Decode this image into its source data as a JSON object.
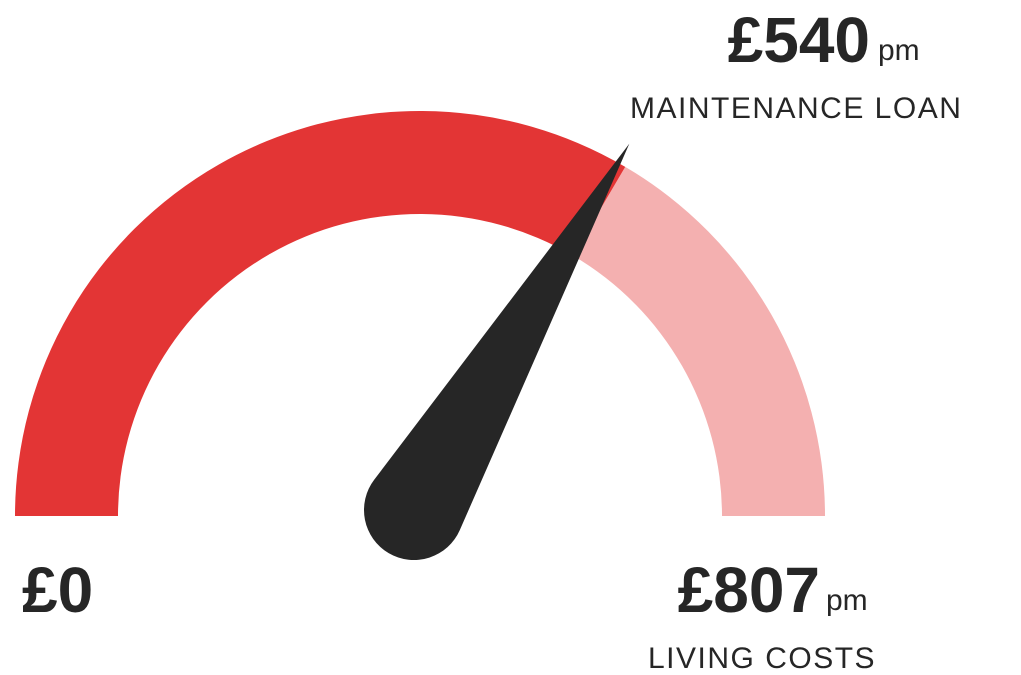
{
  "chart_data": {
    "type": "gauge",
    "values": [
      540
    ],
    "value_labels": [
      "£540"
    ],
    "value_unit": "pm",
    "value_caption": "MAINTENANCE LOAN",
    "xlim": [
      0,
      807
    ],
    "xticks": [
      {
        "value": 0,
        "label": "£0"
      },
      {
        "value": 807,
        "label": "£807"
      }
    ],
    "max_unit": "pm",
    "max_caption": "LIVING COSTS",
    "color": "#e33535",
    "track_color": "#f4b0b0",
    "needle_color": "#262626"
  }
}
